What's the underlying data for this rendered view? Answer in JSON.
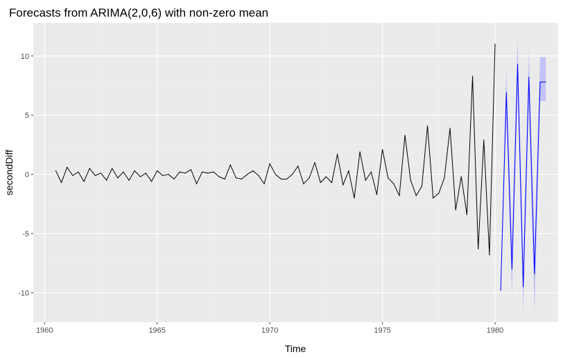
{
  "chart_data": {
    "type": "line",
    "title": "Forecasts from ARIMA(2,0,6) with non-zero mean",
    "xlabel": "Time",
    "ylabel": "secondDiff",
    "xlim": [
      1959.5,
      1982.8
    ],
    "ylim": [
      -12.5,
      12.8
    ],
    "x_ticks": [
      1960,
      1965,
      1970,
      1975,
      1980
    ],
    "x_tick_labels": [
      "1960",
      "1965",
      "1970",
      "1975",
      "1980"
    ],
    "y_ticks": [
      -10,
      -5,
      0,
      5,
      10
    ],
    "y_tick_labels": [
      "-10",
      "-5",
      "0",
      "5",
      "10"
    ],
    "grid": true,
    "background": "#ebebeb",
    "series": [
      {
        "role": "observed",
        "color": "#000000",
        "x": [
          1960.5,
          1960.75,
          1961,
          1961.25,
          1961.5,
          1961.75,
          1962,
          1962.25,
          1962.5,
          1962.75,
          1963,
          1963.25,
          1963.5,
          1963.75,
          1964,
          1964.25,
          1964.5,
          1964.75,
          1965,
          1965.25,
          1965.5,
          1965.75,
          1966,
          1966.25,
          1966.5,
          1966.75,
          1967,
          1967.25,
          1967.5,
          1967.75,
          1968,
          1968.25,
          1968.5,
          1968.75,
          1969,
          1969.25,
          1969.5,
          1969.75,
          1970,
          1970.25,
          1970.5,
          1970.75,
          1971,
          1971.25,
          1971.5,
          1971.75,
          1972,
          1972.25,
          1972.5,
          1972.75,
          1973,
          1973.25,
          1973.5,
          1973.75,
          1974,
          1974.25,
          1974.5,
          1974.75,
          1975,
          1975.25,
          1975.5,
          1975.75,
          1976,
          1976.25,
          1976.5,
          1976.75,
          1977,
          1977.25,
          1977.5,
          1977.75,
          1978,
          1978.25,
          1978.5,
          1978.75,
          1979,
          1979.25,
          1979.5,
          1979.75,
          1980
        ],
        "values": [
          0.3,
          -0.7,
          0.6,
          -0.1,
          0.2,
          -0.6,
          0.5,
          -0.1,
          0.1,
          -0.5,
          0.5,
          -0.3,
          0.2,
          -0.5,
          0.3,
          -0.2,
          0.1,
          -0.6,
          0.3,
          -0.1,
          0.0,
          -0.4,
          0.2,
          0.1,
          0.4,
          -0.8,
          0.2,
          0.1,
          0.2,
          -0.2,
          -0.4,
          0.8,
          -0.3,
          -0.4,
          0.0,
          0.3,
          -0.1,
          -0.8,
          0.9,
          0.0,
          -0.4,
          -0.4,
          0.0,
          0.7,
          -0.8,
          -0.3,
          1.0,
          -0.7,
          -0.2,
          -0.7,
          1.7,
          -0.9,
          0.3,
          -2.0,
          1.9,
          -0.5,
          0.2,
          -1.7,
          2.1,
          -0.3,
          -0.8,
          -1.8,
          3.3,
          -0.5,
          -1.8,
          -1.0,
          4.1,
          -2.0,
          -1.6,
          -0.3,
          3.9,
          -3.0,
          -0.2,
          -3.4,
          8.3,
          -6.3,
          2.9,
          -6.8,
          11.0
        ]
      },
      {
        "role": "forecast",
        "color": "#0000ff",
        "x": [
          1980.25,
          1980.5,
          1980.75,
          1981,
          1981.25,
          1981.5,
          1981.75,
          1982,
          1982.25
        ],
        "values": [
          -9.8,
          6.9,
          -8.0,
          9.3,
          -9.5,
          8.2,
          -8.4,
          7.8,
          7.8
        ],
        "lower": [
          -10.4,
          4.7,
          -10.2,
          7.0,
          -11.7,
          6.1,
          -11.8,
          6.2,
          6.2
        ],
        "upper": [
          -9.1,
          8.9,
          -5.8,
          11.5,
          -7.3,
          10.5,
          -5.8,
          9.9,
          9.9
        ]
      }
    ],
    "interval_color": "#a0a0ff"
  }
}
